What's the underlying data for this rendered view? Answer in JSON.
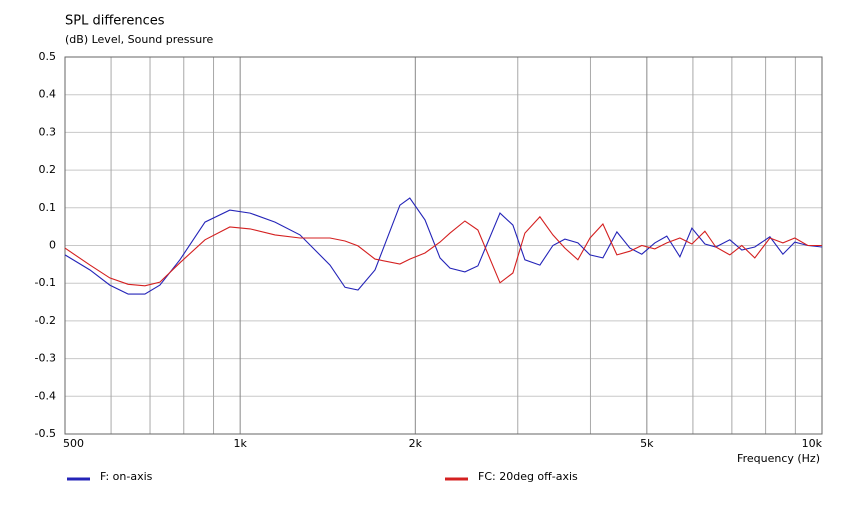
{
  "chart_data": {
    "type": "line",
    "title": "SPL differences",
    "ylabel": "(dB)  Level, Sound pressure",
    "xlabel": "Frequency  (Hz)",
    "xscale": "log",
    "grid": true,
    "xlim": [
      500,
      10000
    ],
    "ylim": [
      -0.5,
      0.5
    ],
    "xticks": [
      500,
      {
        "value": 1000,
        "label": "1k"
      },
      {
        "value": 2000,
        "label": "2k"
      },
      {
        "value": 5000,
        "label": "5k"
      },
      {
        "value": 10000,
        "label": "10k"
      }
    ],
    "xminorticks": [
      600,
      700,
      800,
      900,
      3000,
      4000,
      6000,
      7000,
      8000,
      9000
    ],
    "yticks": [
      0.5,
      0.4,
      0.3,
      0.2,
      0.1,
      0,
      -0.1,
      -0.2,
      -0.3,
      -0.4,
      -0.5
    ],
    "x": [
      500,
      552,
      597,
      642,
      686,
      728,
      788,
      870,
      960,
      1040,
      1148,
      1267,
      1427,
      1514,
      1594,
      1705,
      1882,
      1957,
      2078,
      2205,
      2294,
      2434,
      2562,
      2796,
      2943,
      3086,
      3275,
      3448,
      3615,
      3806,
      3992,
      4202,
      4441,
      4675,
      4902,
      5160,
      5410,
      5699,
      5975,
      6291,
      6569,
      6944,
      7281,
      7665,
      8137,
      8566,
      8978,
      9455,
      10000
    ],
    "series": [
      {
        "name": "F: on-axis",
        "color": "#2424b8",
        "values": [
          -0.025,
          -0.065,
          -0.105,
          -0.129,
          -0.129,
          -0.105,
          -0.038,
          0.062,
          0.094,
          0.086,
          0.062,
          0.028,
          -0.052,
          -0.111,
          -0.118,
          -0.065,
          0.107,
          0.126,
          0.068,
          -0.033,
          -0.06,
          -0.07,
          -0.054,
          0.086,
          0.054,
          -0.038,
          -0.052,
          0,
          0.017,
          0.007,
          -0.025,
          -0.033,
          0.036,
          -0.007,
          -0.023,
          0.007,
          0.025,
          -0.03,
          0.046,
          0.004,
          -0.004,
          0.015,
          -0.012,
          -0.004,
          0.023,
          -0.023,
          0.009,
          0,
          -0.004
        ]
      },
      {
        "name": "FC: 20deg off-axis",
        "color": "#d42020",
        "values": [
          -0.007,
          -0.052,
          -0.086,
          -0.103,
          -0.107,
          -0.097,
          -0.046,
          0.015,
          0.049,
          0.044,
          0.028,
          0.02,
          0.02,
          0.012,
          -0.001,
          -0.036,
          -0.049,
          -0.036,
          -0.02,
          0.009,
          0.033,
          0.065,
          0.041,
          -0.099,
          -0.073,
          0.033,
          0.076,
          0.028,
          -0.007,
          -0.038,
          0.02,
          0.057,
          -0.025,
          -0.015,
          0,
          -0.009,
          0.007,
          0.02,
          0.004,
          0.038,
          -0.004,
          -0.025,
          0,
          -0.033,
          0.02,
          0.007,
          0.02,
          0,
          0
        ]
      }
    ]
  }
}
